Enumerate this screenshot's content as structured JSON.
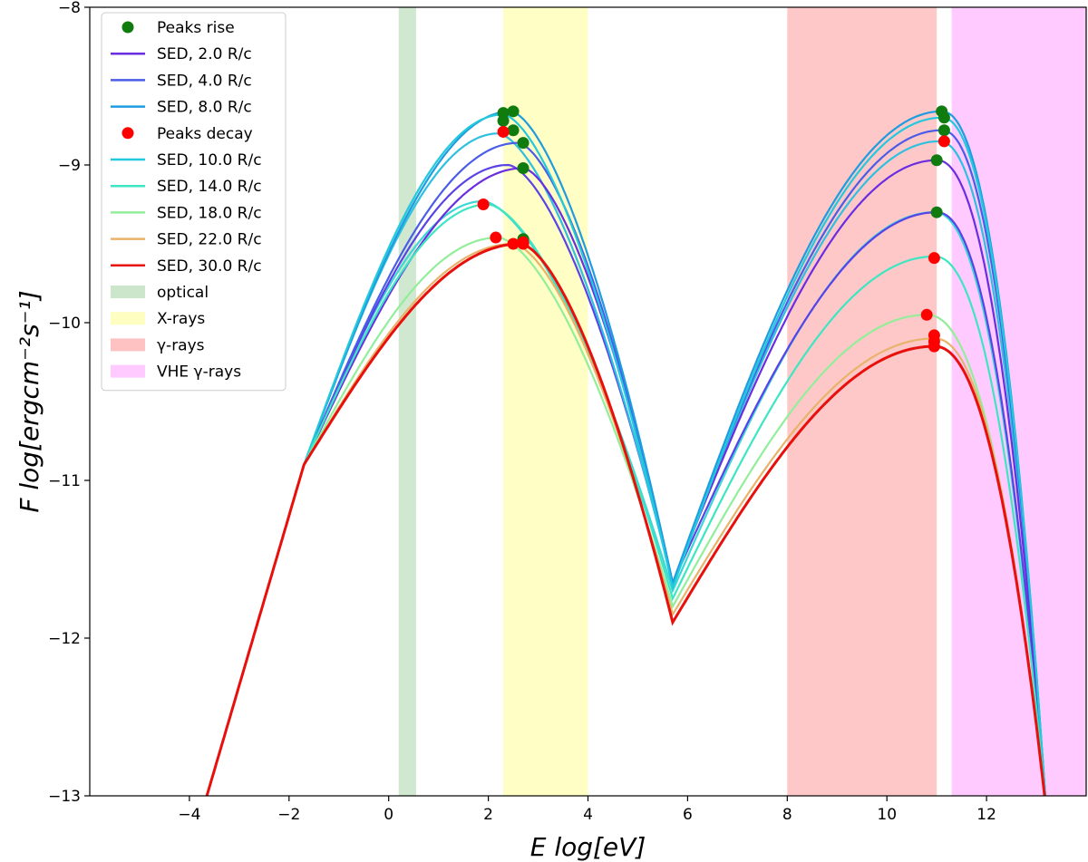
{
  "chart_data": {
    "type": "line",
    "title": "",
    "xlabel": "E log[eV]",
    "ylabel": "F log[ergcm⁻²s⁻¹]",
    "xlim": [
      -6,
      14
    ],
    "ylim": [
      -13,
      -8
    ],
    "xticks": [
      -4,
      -2,
      0,
      2,
      4,
      6,
      8,
      10,
      12
    ],
    "yticks": [
      -13,
      -12,
      -11,
      -10,
      -9,
      -8
    ],
    "xtick_labels": [
      "−4",
      "−2",
      "0",
      "2",
      "4",
      "6",
      "8",
      "10",
      "12"
    ],
    "ytick_labels": [
      "−13",
      "−12",
      "−11",
      "−10",
      "−9",
      "−8"
    ],
    "bands": [
      {
        "name": "optical",
        "range": [
          0.2,
          0.55
        ],
        "color": "#a8d5a8",
        "alpha": 0.55
      },
      {
        "name": "X-rays",
        "range": [
          2.3,
          4.0
        ],
        "color": "#fdfd96",
        "alpha": 0.55
      },
      {
        "name": "γ-rays",
        "range": [
          8.0,
          11.0
        ],
        "color": "#ff9a9a",
        "alpha": 0.55
      },
      {
        "name": "VHE γ-rays",
        "range": [
          11.3,
          14.0
        ],
        "color": "#ffa6ff",
        "alpha": 0.6
      }
    ],
    "series": [
      {
        "name": "SED, 2.0 R/c",
        "color": "#6a2ee0",
        "sync_peak": [
          2.7,
          -9.02
        ],
        "ic_peak": [
          11.0,
          -8.97
        ],
        "mid": -11.65
      },
      {
        "name": "SED, 4.0 R/c",
        "color": "#4a5de6",
        "sync_peak": [
          2.6,
          -8.86
        ],
        "ic_peak": [
          11.1,
          -8.78
        ],
        "mid": -11.65
      },
      {
        "name": "SED, 8.0 R/c",
        "color": "#1e9ce0",
        "sync_peak": [
          2.45,
          -8.66
        ],
        "ic_peak": [
          11.1,
          -8.66
        ],
        "mid": -11.65
      },
      {
        "name": "SED, 10.0 R/c",
        "color": "#22c9dd",
        "sync_peak": [
          2.3,
          -8.68
        ],
        "ic_peak": [
          11.1,
          -8.7
        ],
        "mid": -11.68
      },
      {
        "name": "SED, 14.0 R/c",
        "color": "#3de6c2",
        "sync_peak": [
          2.0,
          -9.25
        ],
        "ic_peak": [
          10.95,
          -9.58
        ],
        "mid": -11.75
      },
      {
        "name": "SED, 18.0 R/c",
        "color": "#92ee9a",
        "sync_peak": [
          2.2,
          -9.46
        ],
        "ic_peak": [
          10.8,
          -9.95
        ],
        "mid": -11.8
      },
      {
        "name": "SED, 22.0 R/c",
        "color": "#e8b36a",
        "sync_peak": [
          2.5,
          -9.5
        ],
        "ic_peak": [
          10.95,
          -10.1
        ],
        "mid": -11.85
      },
      {
        "name": "SED, 30.0 R/c",
        "color": "#e8100c",
        "sync_peak": [
          2.65,
          -9.5
        ],
        "ic_peak": [
          10.95,
          -10.15
        ],
        "mid": -11.9
      }
    ],
    "extra_curves": [
      {
        "color": "#3dd6d6",
        "sync_peak": [
          1.9,
          -9.23
        ],
        "ic_peak": [
          10.95,
          -9.3
        ],
        "mid": -11.7
      },
      {
        "color": "#5a43e6",
        "sync_peak": [
          2.4,
          -9.0
        ],
        "ic_peak": [
          11.0,
          -9.3
        ],
        "mid": -11.65
      },
      {
        "color": "#2fc0e0",
        "sync_peak": [
          2.2,
          -8.8
        ],
        "ic_peak": [
          11.05,
          -8.85
        ],
        "mid": -11.66
      }
    ],
    "peaks_rise": {
      "label": "Peaks rise",
      "color": "#107c10",
      "points": [
        [
          2.3,
          -8.67
        ],
        [
          2.5,
          -8.66
        ],
        [
          2.3,
          -8.72
        ],
        [
          2.5,
          -8.78
        ],
        [
          2.7,
          -8.86
        ],
        [
          2.7,
          -9.02
        ],
        [
          2.7,
          -9.47
        ],
        [
          11.1,
          -8.66
        ],
        [
          11.15,
          -8.7
        ],
        [
          11.15,
          -8.78
        ],
        [
          11.0,
          -8.97
        ],
        [
          11.0,
          -9.3
        ]
      ]
    },
    "peaks_decay": {
      "label": "Peaks decay",
      "color": "#ff0000",
      "points": [
        [
          2.3,
          -8.79
        ],
        [
          1.9,
          -9.25
        ],
        [
          2.15,
          -9.46
        ],
        [
          2.5,
          -9.5
        ],
        [
          2.7,
          -9.49
        ],
        [
          2.7,
          -9.5
        ],
        [
          11.15,
          -8.85
        ],
        [
          10.95,
          -9.59
        ],
        [
          10.8,
          -9.95
        ],
        [
          10.95,
          -10.08
        ],
        [
          10.95,
          -10.12
        ],
        [
          10.95,
          -10.15
        ]
      ]
    },
    "legend": {
      "placement": "top-left",
      "entries": [
        {
          "label": "Peaks rise",
          "kind": "marker",
          "color": "#107c10"
        },
        {
          "label": "SED, 2.0 R/c",
          "kind": "line",
          "color": "#6a2ee0"
        },
        {
          "label": "SED, 4.0 R/c",
          "kind": "line",
          "color": "#4a5de6"
        },
        {
          "label": "SED, 8.0 R/c",
          "kind": "line",
          "color": "#1e9ce0"
        },
        {
          "label": "Peaks decay",
          "kind": "marker",
          "color": "#ff0000"
        },
        {
          "label": "SED, 10.0 R/c",
          "kind": "line",
          "color": "#22c9dd"
        },
        {
          "label": "SED, 14.0 R/c",
          "kind": "line",
          "color": "#3de6c2"
        },
        {
          "label": "SED, 18.0 R/c",
          "kind": "line",
          "color": "#92ee9a"
        },
        {
          "label": "SED, 22.0 R/c",
          "kind": "line",
          "color": "#e8b36a"
        },
        {
          "label": "SED, 30.0 R/c",
          "kind": "line",
          "color": "#e8100c"
        },
        {
          "label": "optical",
          "kind": "patch",
          "color": "#a8d5a8"
        },
        {
          "label": "X-rays",
          "kind": "patch",
          "color": "#fdfd96"
        },
        {
          "label": "γ-rays",
          "kind": "patch",
          "color": "#ff9a9a"
        },
        {
          "label": "VHE γ-rays",
          "kind": "patch",
          "color": "#ffa6ff"
        }
      ]
    }
  }
}
